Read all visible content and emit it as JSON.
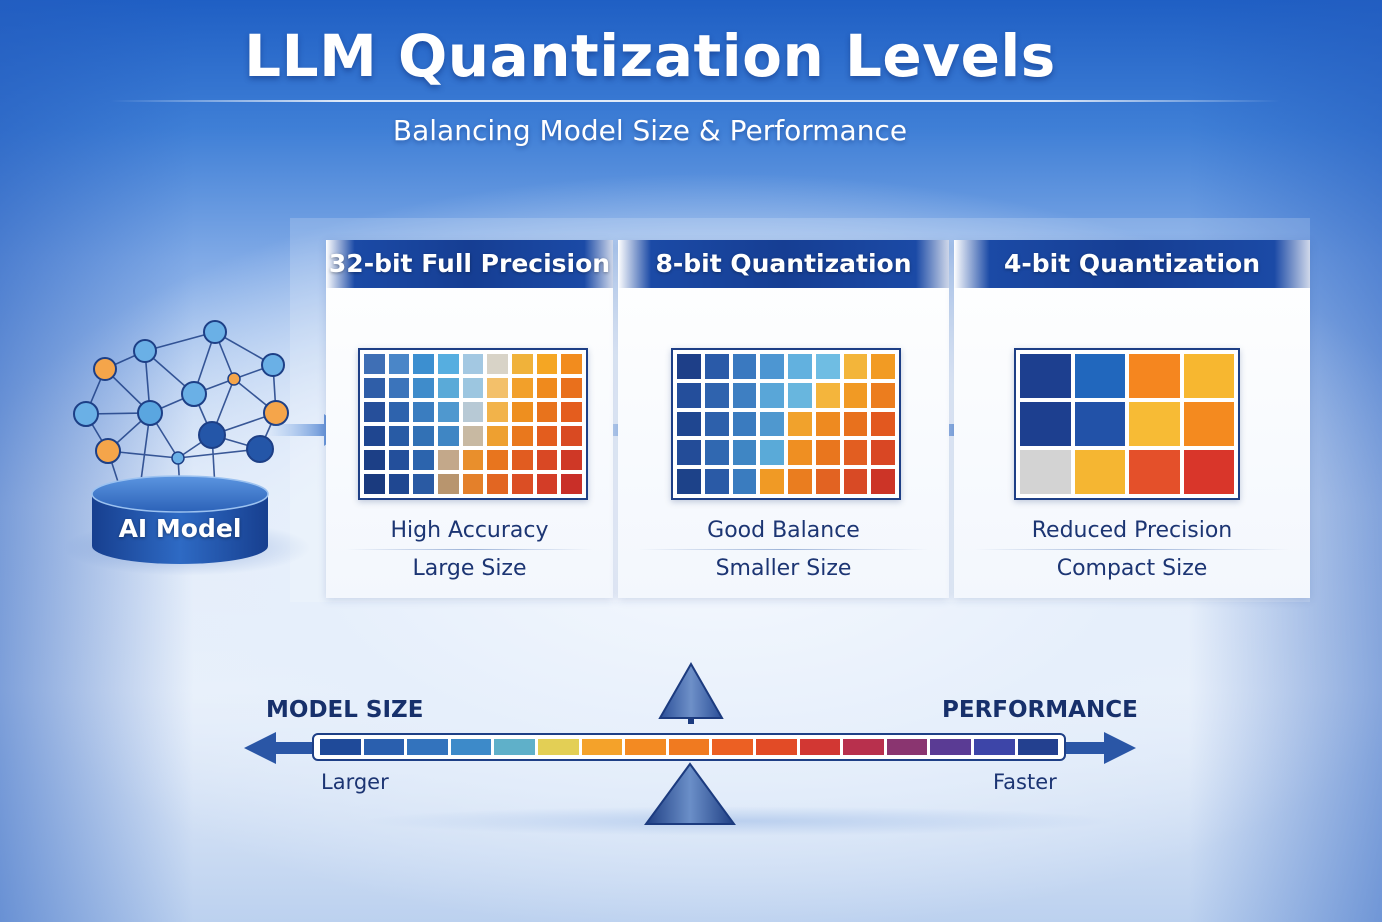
{
  "header": {
    "title": "LLM Quantization Levels",
    "subtitle": "Balancing Model Size & Performance"
  },
  "model": {
    "label": "AI Model"
  },
  "panels": [
    {
      "title": "32-bit Full Precision",
      "line1": "High Accuracy",
      "line2": "Large Size",
      "grid": {
        "cols": 9,
        "rows": 6,
        "colors": [
          "#3f6fb5",
          "#4a86c8",
          "#3c8fd0",
          "#56aee0",
          "#a3c8e2",
          "#d8d3c7",
          "#f0b23a",
          "#f5a623",
          "#f28c1e",
          "#2f5ea8",
          "#3b74bb",
          "#3f8ccb",
          "#5aaad8",
          "#9cc6e0",
          "#f3c06a",
          "#f2a02a",
          "#ef8a1d",
          "#e9701c",
          "#264f9a",
          "#2e63ad",
          "#3a7dc0",
          "#4f98cf",
          "#b7c9d5",
          "#f2b34a",
          "#ee8f1f",
          "#e8731c",
          "#e45d1e",
          "#1f4690",
          "#285ba5",
          "#3271b5",
          "#3f86c4",
          "#c8b9a2",
          "#eea030",
          "#e9781d",
          "#e35d1e",
          "#d94a22",
          "#1c3f86",
          "#234f9b",
          "#2c64ad",
          "#c3a88a",
          "#e98f2c",
          "#e8751e",
          "#e15c20",
          "#d94824",
          "#cf3826",
          "#1a3a7e",
          "#1f4791",
          "#2a5aa3",
          "#b8956e",
          "#e4802a",
          "#e26622",
          "#db4e24",
          "#d33d27",
          "#c92f28"
        ]
      }
    },
    {
      "title": "8-bit Quantization",
      "line1": "Good Balance",
      "line2": "Smaller Size",
      "grid": {
        "cols": 8,
        "rows": 5,
        "colors": [
          "#1e3f88",
          "#2a5aa8",
          "#3a79c0",
          "#4d96d2",
          "#62b1df",
          "#6fbde3",
          "#f3b53a",
          "#f29b23",
          "#244e9b",
          "#2f63ae",
          "#3e7fc2",
          "#59a6d8",
          "#68b6de",
          "#f4b53c",
          "#f19a24",
          "#ec7d1e",
          "#1f4690",
          "#2d60ab",
          "#3a7bbf",
          "#4f98cf",
          "#f1a22c",
          "#ee8a20",
          "#e8711d",
          "#e2581f",
          "#234c98",
          "#3068b1",
          "#3f86c4",
          "#5aaad8",
          "#ef8f22",
          "#e9761e",
          "#e25e21",
          "#d94724",
          "#1d4289",
          "#2a5aa6",
          "#3a7cbf",
          "#f09a25",
          "#ea7d1f",
          "#e26322",
          "#d84a25",
          "#cc3427"
        ]
      }
    },
    {
      "title": "4-bit Quantization",
      "line1": "Reduced Precision",
      "line2": "Compact Size",
      "grid": {
        "cols": 4,
        "rows": 3,
        "colors": [
          "#1d3f8f",
          "#2167bd",
          "#f5861f",
          "#f7b730",
          "#1d3f8f",
          "#2252a8",
          "#f7bb35",
          "#f48a1f",
          "#d3d3d3",
          "#f5b632",
          "#e4502a",
          "#d9362a"
        ]
      }
    }
  ],
  "scale": {
    "left_label": "MODEL SIZE",
    "left_sub": "Larger",
    "right_label": "PERFORMANCE",
    "right_sub": "Faster",
    "segment_colors": [
      "#1f4a99",
      "#2a5fae",
      "#3373bd",
      "#3d8ac9",
      "#5fb0c9",
      "#e3cf55",
      "#f4a22a",
      "#f38a22",
      "#f07a20",
      "#ec6023",
      "#e24b26",
      "#d23733",
      "#b8304d",
      "#8a3570",
      "#5a3b94",
      "#3d45a8",
      "#23408f"
    ]
  }
}
